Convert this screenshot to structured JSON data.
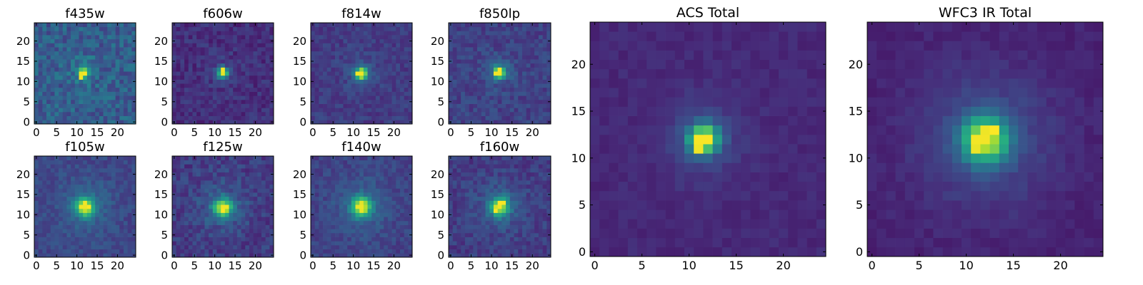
{
  "chart_data": [
    {
      "type": "heatmap",
      "title": "f435w",
      "colormap": "viridis",
      "xlim": [
        -0.5,
        24.5
      ],
      "ylim": [
        -0.5,
        24.5
      ],
      "xticks": [
        0,
        5,
        10,
        15,
        20
      ],
      "yticks": [
        0,
        5,
        10,
        15,
        20
      ],
      "grid": false,
      "peak": {
        "x": 11.7,
        "y": 12.2
      },
      "peak_cells": [
        [
          11,
          12
        ],
        [
          12,
          12
        ],
        [
          11,
          11
        ]
      ]
    },
    {
      "type": "heatmap",
      "title": "f606w",
      "colormap": "viridis",
      "xlim": [
        -0.5,
        24.5
      ],
      "ylim": [
        -0.5,
        24.5
      ],
      "xticks": [
        0,
        5,
        10,
        15,
        20
      ],
      "yticks": [
        0,
        5,
        10,
        15,
        20
      ],
      "grid": false,
      "peak": {
        "x": 12.0,
        "y": 12.2
      },
      "peak_cells": [
        [
          12,
          12
        ],
        [
          12,
          13
        ]
      ]
    },
    {
      "type": "heatmap",
      "title": "f814w",
      "colormap": "viridis",
      "xlim": [
        -0.5,
        24.5
      ],
      "ylim": [
        -0.5,
        24.5
      ],
      "xticks": [
        0,
        5,
        10,
        15,
        20
      ],
      "yticks": [
        0,
        5,
        10,
        15,
        20
      ],
      "grid": false,
      "peak": {
        "x": 12.0,
        "y": 12.0
      },
      "peak_cells": [
        [
          12,
          12
        ],
        [
          11,
          12
        ]
      ]
    },
    {
      "type": "heatmap",
      "title": "f850lp",
      "colormap": "viridis",
      "xlim": [
        -0.5,
        24.5
      ],
      "ylim": [
        -0.5,
        24.5
      ],
      "xticks": [
        0,
        5,
        10,
        15,
        20
      ],
      "yticks": [
        0,
        5,
        10,
        15,
        20
      ],
      "grid": false,
      "peak": {
        "x": 12.0,
        "y": 12.3
      },
      "peak_cells": [
        [
          12,
          13
        ],
        [
          12,
          12
        ],
        [
          11,
          12
        ]
      ]
    },
    {
      "type": "heatmap",
      "title": "f105w",
      "colormap": "viridis",
      "xlim": [
        -0.5,
        24.5
      ],
      "ylim": [
        -0.5,
        24.5
      ],
      "xticks": [
        0,
        5,
        10,
        15,
        20
      ],
      "yticks": [
        0,
        5,
        10,
        15,
        20
      ],
      "grid": false,
      "peak": {
        "x": 12.0,
        "y": 12.0
      },
      "peak_cells": [
        [
          12,
          13
        ],
        [
          12,
          12
        ],
        [
          11,
          12
        ],
        [
          13,
          12
        ]
      ]
    },
    {
      "type": "heatmap",
      "title": "f125w",
      "colormap": "viridis",
      "xlim": [
        -0.5,
        24.5
      ],
      "ylim": [
        -0.5,
        24.5
      ],
      "xticks": [
        0,
        5,
        10,
        15,
        20
      ],
      "yticks": [
        0,
        5,
        10,
        15,
        20
      ],
      "grid": false,
      "peak": {
        "x": 12.0,
        "y": 11.8
      },
      "peak_cells": [
        [
          12,
          12
        ],
        [
          13,
          12
        ],
        [
          12,
          11
        ]
      ]
    },
    {
      "type": "heatmap",
      "title": "f140w",
      "colormap": "viridis",
      "xlim": [
        -0.5,
        24.5
      ],
      "ylim": [
        -0.5,
        24.5
      ],
      "xticks": [
        0,
        5,
        10,
        15,
        20
      ],
      "yticks": [
        0,
        5,
        10,
        15,
        20
      ],
      "grid": false,
      "peak": {
        "x": 12.0,
        "y": 12.0
      },
      "peak_cells": [
        [
          12,
          12
        ],
        [
          12,
          13
        ],
        [
          11,
          12
        ]
      ]
    },
    {
      "type": "heatmap",
      "title": "f160w",
      "colormap": "viridis",
      "xlim": [
        -0.5,
        24.5
      ],
      "ylim": [
        -0.5,
        24.5
      ],
      "xticks": [
        0,
        5,
        10,
        15,
        20
      ],
      "yticks": [
        0,
        5,
        10,
        15,
        20
      ],
      "grid": false,
      "peak": {
        "x": 12.0,
        "y": 12.0
      },
      "peak_cells": [
        [
          12,
          13
        ],
        [
          13,
          13
        ],
        [
          12,
          12
        ],
        [
          11,
          11
        ]
      ]
    },
    {
      "type": "heatmap",
      "title": "ACS Total",
      "colormap": "viridis",
      "xlim": [
        -0.5,
        24.5
      ],
      "ylim": [
        -0.5,
        24.5
      ],
      "xticks": [
        0,
        5,
        10,
        15,
        20
      ],
      "yticks": [
        0,
        5,
        10,
        15,
        20
      ],
      "grid": false,
      "peak": {
        "x": 11.5,
        "y": 12.0
      },
      "peak_cells": [
        [
          11,
          12
        ],
        [
          12,
          12
        ],
        [
          11,
          11
        ]
      ]
    },
    {
      "type": "heatmap",
      "title": "WFC3 IR Total",
      "colormap": "viridis",
      "xlim": [
        -0.5,
        24.5
      ],
      "ylim": [
        -0.5,
        24.5
      ],
      "xticks": [
        0,
        5,
        10,
        15,
        20
      ],
      "yticks": [
        0,
        5,
        10,
        15,
        20
      ],
      "grid": false,
      "peak": {
        "x": 12.0,
        "y": 12.0
      },
      "peak_cells": [
        [
          12,
          13
        ],
        [
          12,
          12
        ],
        [
          11,
          12
        ],
        [
          11,
          11
        ],
        [
          13,
          13
        ]
      ]
    }
  ],
  "colors": {
    "viridis_low": "#440154",
    "viridis_mid": "#21918c",
    "viridis_high": "#fde725",
    "axis": "#000000"
  }
}
